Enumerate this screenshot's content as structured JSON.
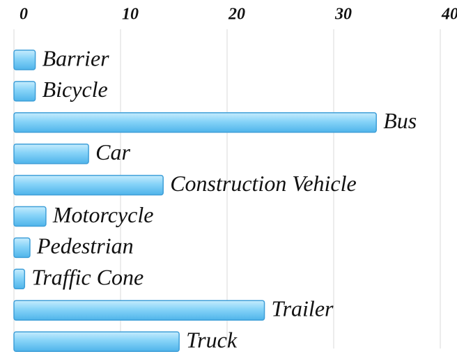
{
  "chart_data": {
    "type": "bar",
    "orientation": "horizontal",
    "categories": [
      "Barrier",
      "Bicycle",
      "Bus",
      "Car",
      "Construction Vehicle",
      "Motorcycle",
      "Pedestrian",
      "Traffic Cone",
      "Trailer",
      "Truck"
    ],
    "values": [
      2,
      2,
      34,
      7,
      14,
      3,
      1.5,
      1,
      23.5,
      15.5
    ],
    "color": "#86d3f8",
    "xlim": [
      0,
      40
    ],
    "xticks": [
      0,
      10,
      20,
      30,
      40
    ],
    "grid": true
  }
}
